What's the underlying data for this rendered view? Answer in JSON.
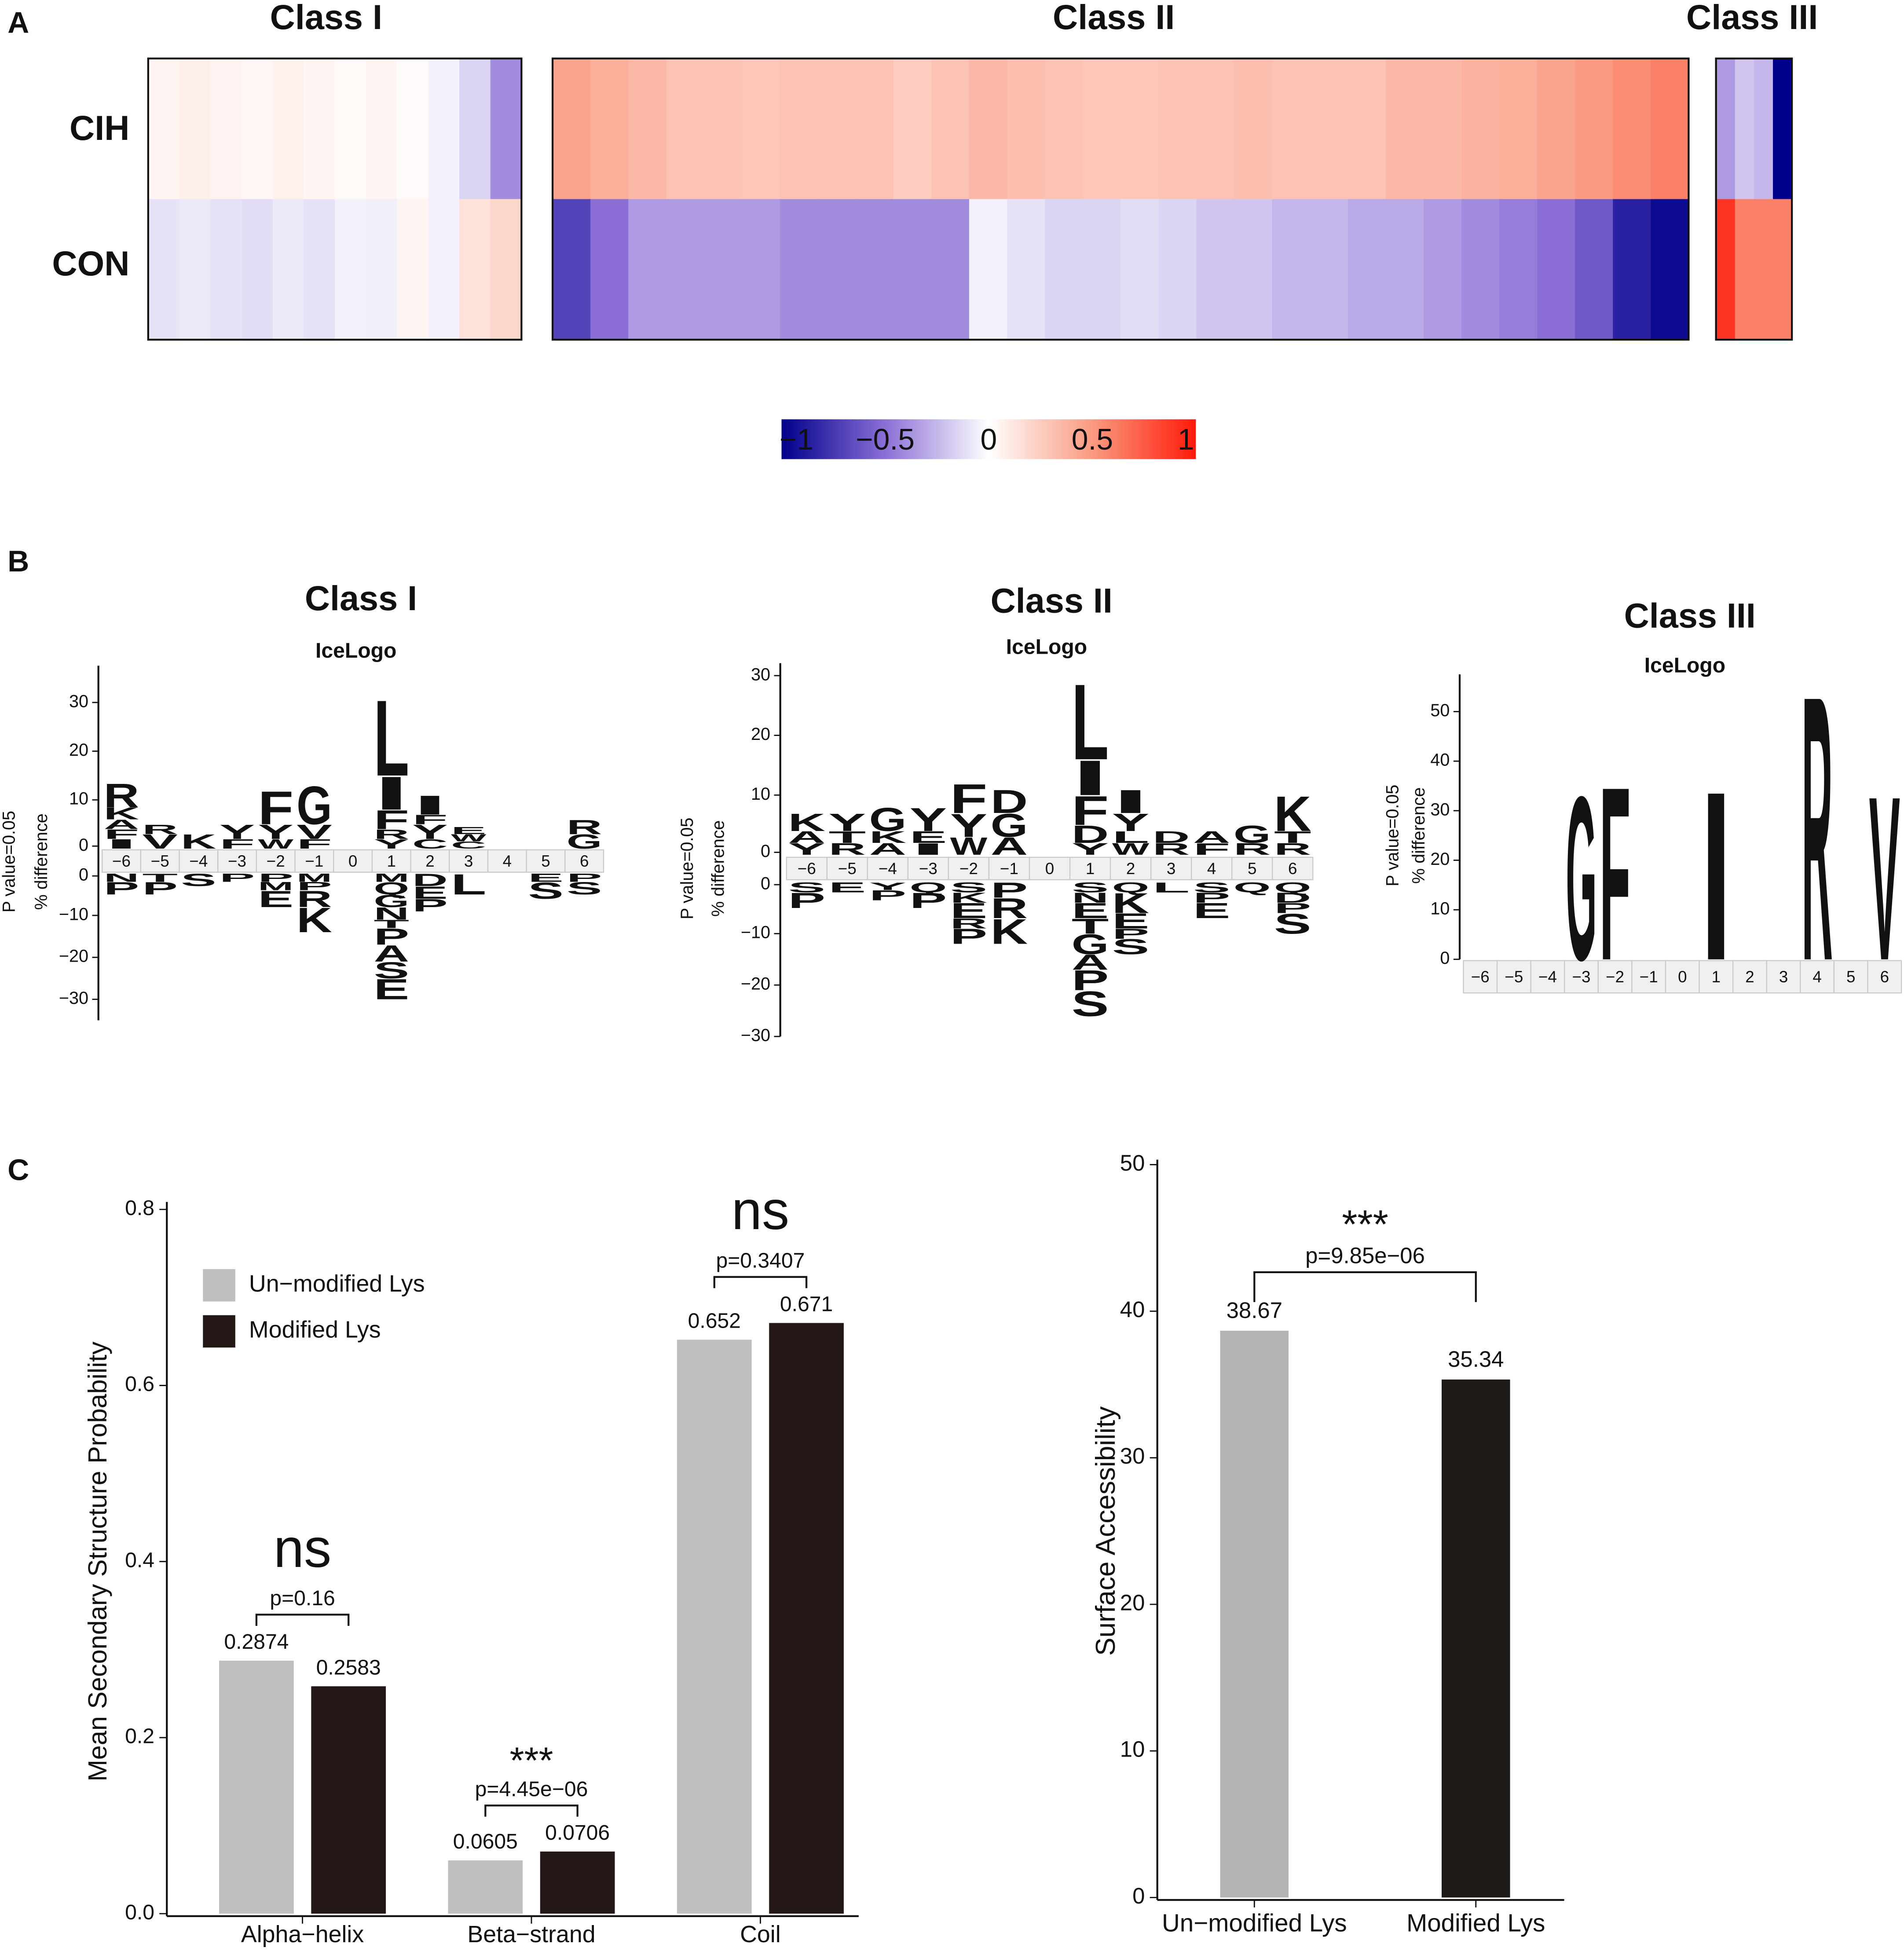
{
  "panels": [
    "A",
    "B",
    "C"
  ],
  "logo_colors": {
    "K": "#1b62a5",
    "R": "#1b62a5",
    "H": "#1b62a5",
    "D": "#e8273f",
    "E": "#e8273f",
    "G": "#139a48",
    "S": "#139a48",
    "T": "#139a48",
    "Y": "#139a48",
    "C": "#139a48",
    "N": "#7b2d9b",
    "Q": "#7b2d9b",
    "other": "#1a1a1a"
  },
  "chart_data": [
    {
      "type": "heatmap",
      "rows": [
        "CIH",
        "CON"
      ],
      "colorscale": [
        [
          -1,
          "#00008b"
        ],
        [
          -0.5,
          "#8b6fd6"
        ],
        [
          0,
          "#ffffff"
        ],
        [
          0.5,
          "#fa9a80"
        ],
        [
          1,
          "#ff1a0a"
        ]
      ],
      "colorbar_ticks": [
        {
          "value": -1,
          "label": "−1"
        },
        {
          "value": -0.5,
          "label": "−0.5"
        },
        0,
        0.5,
        1
      ],
      "groups": [
        {
          "title": "Class I",
          "values": [
            [
              0.05,
              0.08,
              0.06,
              0.04,
              0.07,
              0.05,
              0.03,
              0.05,
              0.02,
              -0.05,
              -0.15,
              -0.4
            ],
            [
              -0.1,
              -0.08,
              -0.1,
              -0.12,
              -0.08,
              -0.1,
              -0.05,
              -0.06,
              0.05,
              -0.05,
              0.15,
              0.2
            ]
          ]
        },
        {
          "title": "Class II",
          "values": [
            [
              0.45,
              0.4,
              0.35,
              0.3,
              0.3,
              0.28,
              0.3,
              0.3,
              0.3,
              0.25,
              0.3,
              0.35,
              0.32,
              0.3,
              0.28,
              0.28,
              0.3,
              0.3,
              0.32,
              0.3,
              0.3,
              0.3,
              0.35,
              0.35,
              0.38,
              0.4,
              0.45,
              0.5,
              0.55,
              0.6
            ],
            [
              -0.7,
              -0.5,
              -0.35,
              -0.35,
              -0.35,
              -0.35,
              -0.4,
              -0.4,
              -0.4,
              -0.4,
              -0.4,
              -0.05,
              -0.1,
              -0.15,
              -0.15,
              -0.12,
              -0.15,
              -0.2,
              -0.2,
              -0.25,
              -0.25,
              -0.3,
              -0.3,
              -0.35,
              -0.4,
              -0.45,
              -0.5,
              -0.6,
              -0.85,
              -0.95
            ]
          ]
        },
        {
          "title": "Class III",
          "values": [
            [
              -0.35,
              -0.2,
              -0.25,
              -1
            ],
            [
              0.9,
              0.6,
              0.6,
              0.6
            ]
          ]
        }
      ]
    },
    {
      "type": "logo",
      "title": "Class I",
      "subtitle": "IceLogo",
      "ylabel": "P value=0.05",
      "ylabel2": "% difference",
      "positions": [
        "−6",
        "−5",
        "−4",
        "−3",
        "−2",
        "−1",
        "0",
        "1",
        "2",
        "3",
        "4",
        "5",
        "6"
      ],
      "ylim": [
        -35,
        35
      ],
      "yticks": [
        {
          "value": -30,
          "label": "−30"
        },
        {
          "value": -20,
          "label": "−20"
        },
        {
          "value": -10,
          "label": "−10"
        },
        0,
        10,
        20,
        30
      ],
      "letters": [
        {
          "pos": 0,
          "letter": "I",
          "value": 2
        },
        {
          "pos": 0,
          "letter": "F",
          "value": 2
        },
        {
          "pos": 0,
          "letter": "A",
          "value": 2
        },
        {
          "pos": 0,
          "letter": "K",
          "value": 2.5
        },
        {
          "pos": 0,
          "letter": "R",
          "value": 5
        },
        {
          "pos": 0,
          "letter": "N",
          "value": -2
        },
        {
          "pos": 0,
          "letter": "P",
          "value": -3
        },
        {
          "pos": 1,
          "letter": "V",
          "value": 3
        },
        {
          "pos": 1,
          "letter": "R",
          "value": 2
        },
        {
          "pos": 1,
          "letter": "T",
          "value": -2
        },
        {
          "pos": 1,
          "letter": "P",
          "value": -3
        },
        {
          "pos": 2,
          "letter": "K",
          "value": 3
        },
        {
          "pos": 2,
          "letter": "S",
          "value": -3
        },
        {
          "pos": 3,
          "letter": "F",
          "value": 2
        },
        {
          "pos": 3,
          "letter": "Y",
          "value": 3
        },
        {
          "pos": 3,
          "letter": "P",
          "value": -2
        },
        {
          "pos": 4,
          "letter": "W",
          "value": 2
        },
        {
          "pos": 4,
          "letter": "Y",
          "value": 3
        },
        {
          "pos": 4,
          "letter": "F",
          "value": 7
        },
        {
          "pos": 4,
          "letter": "P",
          "value": -2
        },
        {
          "pos": 4,
          "letter": "M",
          "value": -2
        },
        {
          "pos": 4,
          "letter": "E",
          "value": -4
        },
        {
          "pos": 5,
          "letter": "F",
          "value": 2
        },
        {
          "pos": 5,
          "letter": "V",
          "value": 3
        },
        {
          "pos": 5,
          "letter": "G",
          "value": 8
        },
        {
          "pos": 5,
          "letter": "M",
          "value": -2
        },
        {
          "pos": 5,
          "letter": "P",
          "value": -2
        },
        {
          "pos": 5,
          "letter": "R",
          "value": -4
        },
        {
          "pos": 5,
          "letter": "K",
          "value": -6
        },
        {
          "pos": 7,
          "letter": "Y",
          "value": 2
        },
        {
          "pos": 7,
          "letter": "R",
          "value": 2
        },
        {
          "pos": 7,
          "letter": "F",
          "value": 4
        },
        {
          "pos": 7,
          "letter": "I",
          "value": 7
        },
        {
          "pos": 7,
          "letter": "L",
          "value": 16
        },
        {
          "pos": 7,
          "letter": "M",
          "value": -2
        },
        {
          "pos": 7,
          "letter": "Q",
          "value": -3
        },
        {
          "pos": 7,
          "letter": "G",
          "value": -3
        },
        {
          "pos": 7,
          "letter": "N",
          "value": -3
        },
        {
          "pos": 7,
          "letter": "T",
          "value": -2
        },
        {
          "pos": 7,
          "letter": "P",
          "value": -4
        },
        {
          "pos": 7,
          "letter": "A",
          "value": -4
        },
        {
          "pos": 7,
          "letter": "S",
          "value": -4
        },
        {
          "pos": 7,
          "letter": "E",
          "value": -5
        },
        {
          "pos": 8,
          "letter": "C",
          "value": 2
        },
        {
          "pos": 8,
          "letter": "Y",
          "value": 3
        },
        {
          "pos": 8,
          "letter": "F",
          "value": 2
        },
        {
          "pos": 8,
          "letter": "I",
          "value": 4
        },
        {
          "pos": 8,
          "letter": "D",
          "value": -3
        },
        {
          "pos": 8,
          "letter": "E",
          "value": -3
        },
        {
          "pos": 8,
          "letter": "P",
          "value": -3
        },
        {
          "pos": 9,
          "letter": "C",
          "value": 1.5
        },
        {
          "pos": 9,
          "letter": "W",
          "value": 1.5
        },
        {
          "pos": 9,
          "letter": "E",
          "value": 1.5
        },
        {
          "pos": 9,
          "letter": "L",
          "value": -5
        },
        {
          "pos": 11,
          "letter": "E",
          "value": -2
        },
        {
          "pos": 11,
          "letter": "S",
          "value": -4
        },
        {
          "pos": 12,
          "letter": "G",
          "value": 3
        },
        {
          "pos": 12,
          "letter": "R",
          "value": 3
        },
        {
          "pos": 12,
          "letter": "P",
          "value": -2
        },
        {
          "pos": 12,
          "letter": "S",
          "value": -3
        }
      ]
    },
    {
      "type": "logo",
      "title": "Class II",
      "subtitle": "IceLogo",
      "ylabel": "P value=0.05",
      "ylabel2": "% difference",
      "positions": [
        "−6",
        "−5",
        "−4",
        "−3",
        "−2",
        "−1",
        "0",
        "1",
        "2",
        "3",
        "4",
        "5",
        "6"
      ],
      "ylim": [
        -30,
        30
      ],
      "yticks": [
        {
          "value": -30,
          "label": "−30"
        },
        {
          "value": -20,
          "label": "−20"
        },
        {
          "value": -10,
          "label": "−10"
        },
        0,
        10,
        20,
        30
      ],
      "letters": [
        {
          "pos": 0,
          "letter": "Y",
          "value": 2
        },
        {
          "pos": 0,
          "letter": "A",
          "value": 2
        },
        {
          "pos": 0,
          "letter": "K",
          "value": 3
        },
        {
          "pos": 0,
          "letter": "S",
          "value": -2
        },
        {
          "pos": 0,
          "letter": "P",
          "value": -3
        },
        {
          "pos": 1,
          "letter": "R",
          "value": 2
        },
        {
          "pos": 1,
          "letter": "T",
          "value": 2
        },
        {
          "pos": 1,
          "letter": "Y",
          "value": 3
        },
        {
          "pos": 1,
          "letter": "E",
          "value": -2
        },
        {
          "pos": 2,
          "letter": "A",
          "value": 2
        },
        {
          "pos": 2,
          "letter": "K",
          "value": 2
        },
        {
          "pos": 2,
          "letter": "G",
          "value": 4
        },
        {
          "pos": 2,
          "letter": "Y",
          "value": -1.5
        },
        {
          "pos": 2,
          "letter": "P",
          "value": -2
        },
        {
          "pos": 3,
          "letter": "I",
          "value": 2
        },
        {
          "pos": 3,
          "letter": "E",
          "value": 2
        },
        {
          "pos": 3,
          "letter": "Y",
          "value": 4
        },
        {
          "pos": 3,
          "letter": "Q",
          "value": -2
        },
        {
          "pos": 3,
          "letter": "P",
          "value": -3
        },
        {
          "pos": 4,
          "letter": "W",
          "value": 3
        },
        {
          "pos": 4,
          "letter": "Y",
          "value": 4
        },
        {
          "pos": 4,
          "letter": "F",
          "value": 5
        },
        {
          "pos": 4,
          "letter": "S",
          "value": -2
        },
        {
          "pos": 4,
          "letter": "K",
          "value": -2
        },
        {
          "pos": 4,
          "letter": "E",
          "value": -3
        },
        {
          "pos": 4,
          "letter": "R",
          "value": -2
        },
        {
          "pos": 4,
          "letter": "P",
          "value": -3
        },
        {
          "pos": 5,
          "letter": "A",
          "value": 3
        },
        {
          "pos": 5,
          "letter": "G",
          "value": 4
        },
        {
          "pos": 5,
          "letter": "D",
          "value": 4
        },
        {
          "pos": 5,
          "letter": "P",
          "value": -3
        },
        {
          "pos": 5,
          "letter": "R",
          "value": -4
        },
        {
          "pos": 5,
          "letter": "K",
          "value": -5
        },
        {
          "pos": 7,
          "letter": "Y",
          "value": 2
        },
        {
          "pos": 7,
          "letter": "D",
          "value": 3
        },
        {
          "pos": 7,
          "letter": "F",
          "value": 5
        },
        {
          "pos": 7,
          "letter": "I",
          "value": 6
        },
        {
          "pos": 7,
          "letter": "L",
          "value": 13
        },
        {
          "pos": 7,
          "letter": "S",
          "value": -2
        },
        {
          "pos": 7,
          "letter": "N",
          "value": -2
        },
        {
          "pos": 7,
          "letter": "E",
          "value": -3
        },
        {
          "pos": 7,
          "letter": "T",
          "value": -3
        },
        {
          "pos": 7,
          "letter": "G",
          "value": -4
        },
        {
          "pos": 7,
          "letter": "A",
          "value": -3
        },
        {
          "pos": 7,
          "letter": "P",
          "value": -4
        },
        {
          "pos": 7,
          "letter": "S",
          "value": -5
        },
        {
          "pos": 8,
          "letter": "W",
          "value": 2
        },
        {
          "pos": 8,
          "letter": "L",
          "value": 2
        },
        {
          "pos": 8,
          "letter": "Y",
          "value": 3
        },
        {
          "pos": 8,
          "letter": "I",
          "value": 4
        },
        {
          "pos": 8,
          "letter": "Q",
          "value": -2
        },
        {
          "pos": 8,
          "letter": "K",
          "value": -4
        },
        {
          "pos": 8,
          "letter": "E",
          "value": -3
        },
        {
          "pos": 8,
          "letter": "P",
          "value": -2
        },
        {
          "pos": 8,
          "letter": "S",
          "value": -3
        },
        {
          "pos": 9,
          "letter": "R",
          "value": 2
        },
        {
          "pos": 9,
          "letter": "D",
          "value": 2
        },
        {
          "pos": 9,
          "letter": "L",
          "value": -2
        },
        {
          "pos": 10,
          "letter": "F",
          "value": 2
        },
        {
          "pos": 10,
          "letter": "A",
          "value": 2
        },
        {
          "pos": 10,
          "letter": "S",
          "value": -2
        },
        {
          "pos": 10,
          "letter": "P",
          "value": -2
        },
        {
          "pos": 10,
          "letter": "E",
          "value": -3
        },
        {
          "pos": 11,
          "letter": "R",
          "value": 2
        },
        {
          "pos": 11,
          "letter": "G",
          "value": 3
        },
        {
          "pos": 11,
          "letter": "Q",
          "value": -2
        },
        {
          "pos": 12,
          "letter": "R",
          "value": 2
        },
        {
          "pos": 12,
          "letter": "T",
          "value": 2
        },
        {
          "pos": 12,
          "letter": "K",
          "value": 6
        },
        {
          "pos": 12,
          "letter": "Q",
          "value": -2
        },
        {
          "pos": 12,
          "letter": "D",
          "value": -2
        },
        {
          "pos": 12,
          "letter": "P",
          "value": -2
        },
        {
          "pos": 12,
          "letter": "S",
          "value": -4
        }
      ]
    },
    {
      "type": "logo",
      "title": "Class III",
      "subtitle": "IceLogo",
      "ylabel": "P value=0.05",
      "ylabel2": "% difference",
      "positions": [
        "−6",
        "−5",
        "−4",
        "−3",
        "−2",
        "−1",
        "0",
        "1",
        "2",
        "3",
        "4",
        "5",
        "6"
      ],
      "ylim": [
        0,
        55
      ],
      "yticks": [
        0,
        10,
        20,
        30,
        40,
        50
      ],
      "letters": [
        {
          "pos": 3,
          "letter": "G",
          "value": 34
        },
        {
          "pos": 4,
          "letter": "F",
          "value": 36
        },
        {
          "pos": 7,
          "letter": "I",
          "value": 35
        },
        {
          "pos": 10,
          "letter": "R",
          "value": 55
        },
        {
          "pos": 12,
          "letter": "V",
          "value": 34
        }
      ]
    },
    {
      "type": "grouped_bar",
      "ylabel": "Mean Secondary Structure Probability",
      "categories": [
        "Alpha−helix",
        "Beta−strand",
        "Coil"
      ],
      "series": [
        {
          "name": "Un−modified Lys",
          "color": "#bfbfbf",
          "values": [
            0.2874,
            0.0605,
            0.652
          ]
        },
        {
          "name": "Modified Lys",
          "color": "#231815",
          "values": [
            0.2583,
            0.0706,
            0.671
          ]
        }
      ],
      "significance": [
        "ns",
        "***",
        "ns"
      ],
      "pvalues": [
        "p=0.16",
        "p=4.45e−06",
        "p=0.3407"
      ],
      "ylim": [
        0,
        0.8
      ],
      "yticks": [
        {
          "value": 0,
          "label": "0.0"
        },
        0.2,
        0.4,
        0.6,
        0.8
      ],
      "legend": "upper left"
    },
    {
      "type": "bar",
      "ylabel": "Surface Accessibility",
      "categories": [
        "Un−modified Lys",
        "Modified Lys"
      ],
      "values": [
        38.67,
        35.34
      ],
      "colors": [
        "#b4b4b7",
        "#1e1a18"
      ],
      "significance": "***",
      "pvalue": "p=9.85e−06",
      "ylim": [
        0,
        50
      ],
      "yticks": [
        0,
        10,
        20,
        30,
        40,
        50
      ]
    }
  ]
}
